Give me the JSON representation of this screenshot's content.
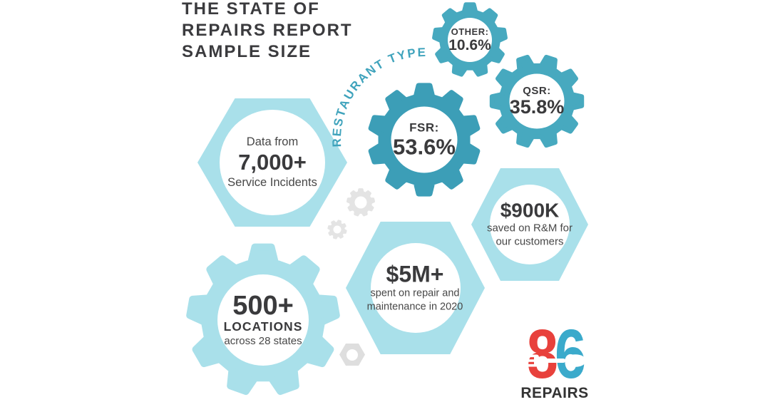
{
  "title": {
    "lines": [
      "THE STATE OF",
      "REPAIRS REPORT",
      "SAMPLE SIZE"
    ]
  },
  "restaurant_type_label": "RESTAURANT TYPE",
  "gears": {
    "fsr": {
      "label": "FSR:",
      "value": "53.6%"
    },
    "qsr": {
      "label": "QSR:",
      "value": "35.8%"
    },
    "other": {
      "label": "OTHER:",
      "value": "10.6%"
    }
  },
  "hexagons": {
    "incidents": {
      "line1": "Data from",
      "value": "7,000+",
      "line2": "Service Incidents"
    },
    "savings": {
      "value": "$900K",
      "line1": "saved on R&M for",
      "line2": "our customers"
    },
    "spend": {
      "value": "$5M+",
      "line1": "spent on repair and",
      "line2": "maintenance in 2020"
    }
  },
  "locations_gear": {
    "value": "500+",
    "label": "LOCATIONS",
    "sub": "across 28 states"
  },
  "logo": {
    "digit1": "8",
    "digit2": "6",
    "name": "REPAIRS"
  },
  "colors": {
    "teal": "#47a9bf",
    "teal_dark": "#3c9eb7",
    "light_blue": "#a9e0ea",
    "decor_gray": "#e4e4e4",
    "nut_gray": "#dedede",
    "dark_text": "#3a3a3c",
    "body_text": "#474747",
    "logo_red": "#e8413c",
    "logo_blue": "#3baacb"
  },
  "chart_data": {
    "type": "pie",
    "title": "Restaurant Type",
    "categories": [
      "FSR",
      "QSR",
      "Other"
    ],
    "values": [
      53.6,
      35.8,
      10.6
    ],
    "unit": "%"
  }
}
